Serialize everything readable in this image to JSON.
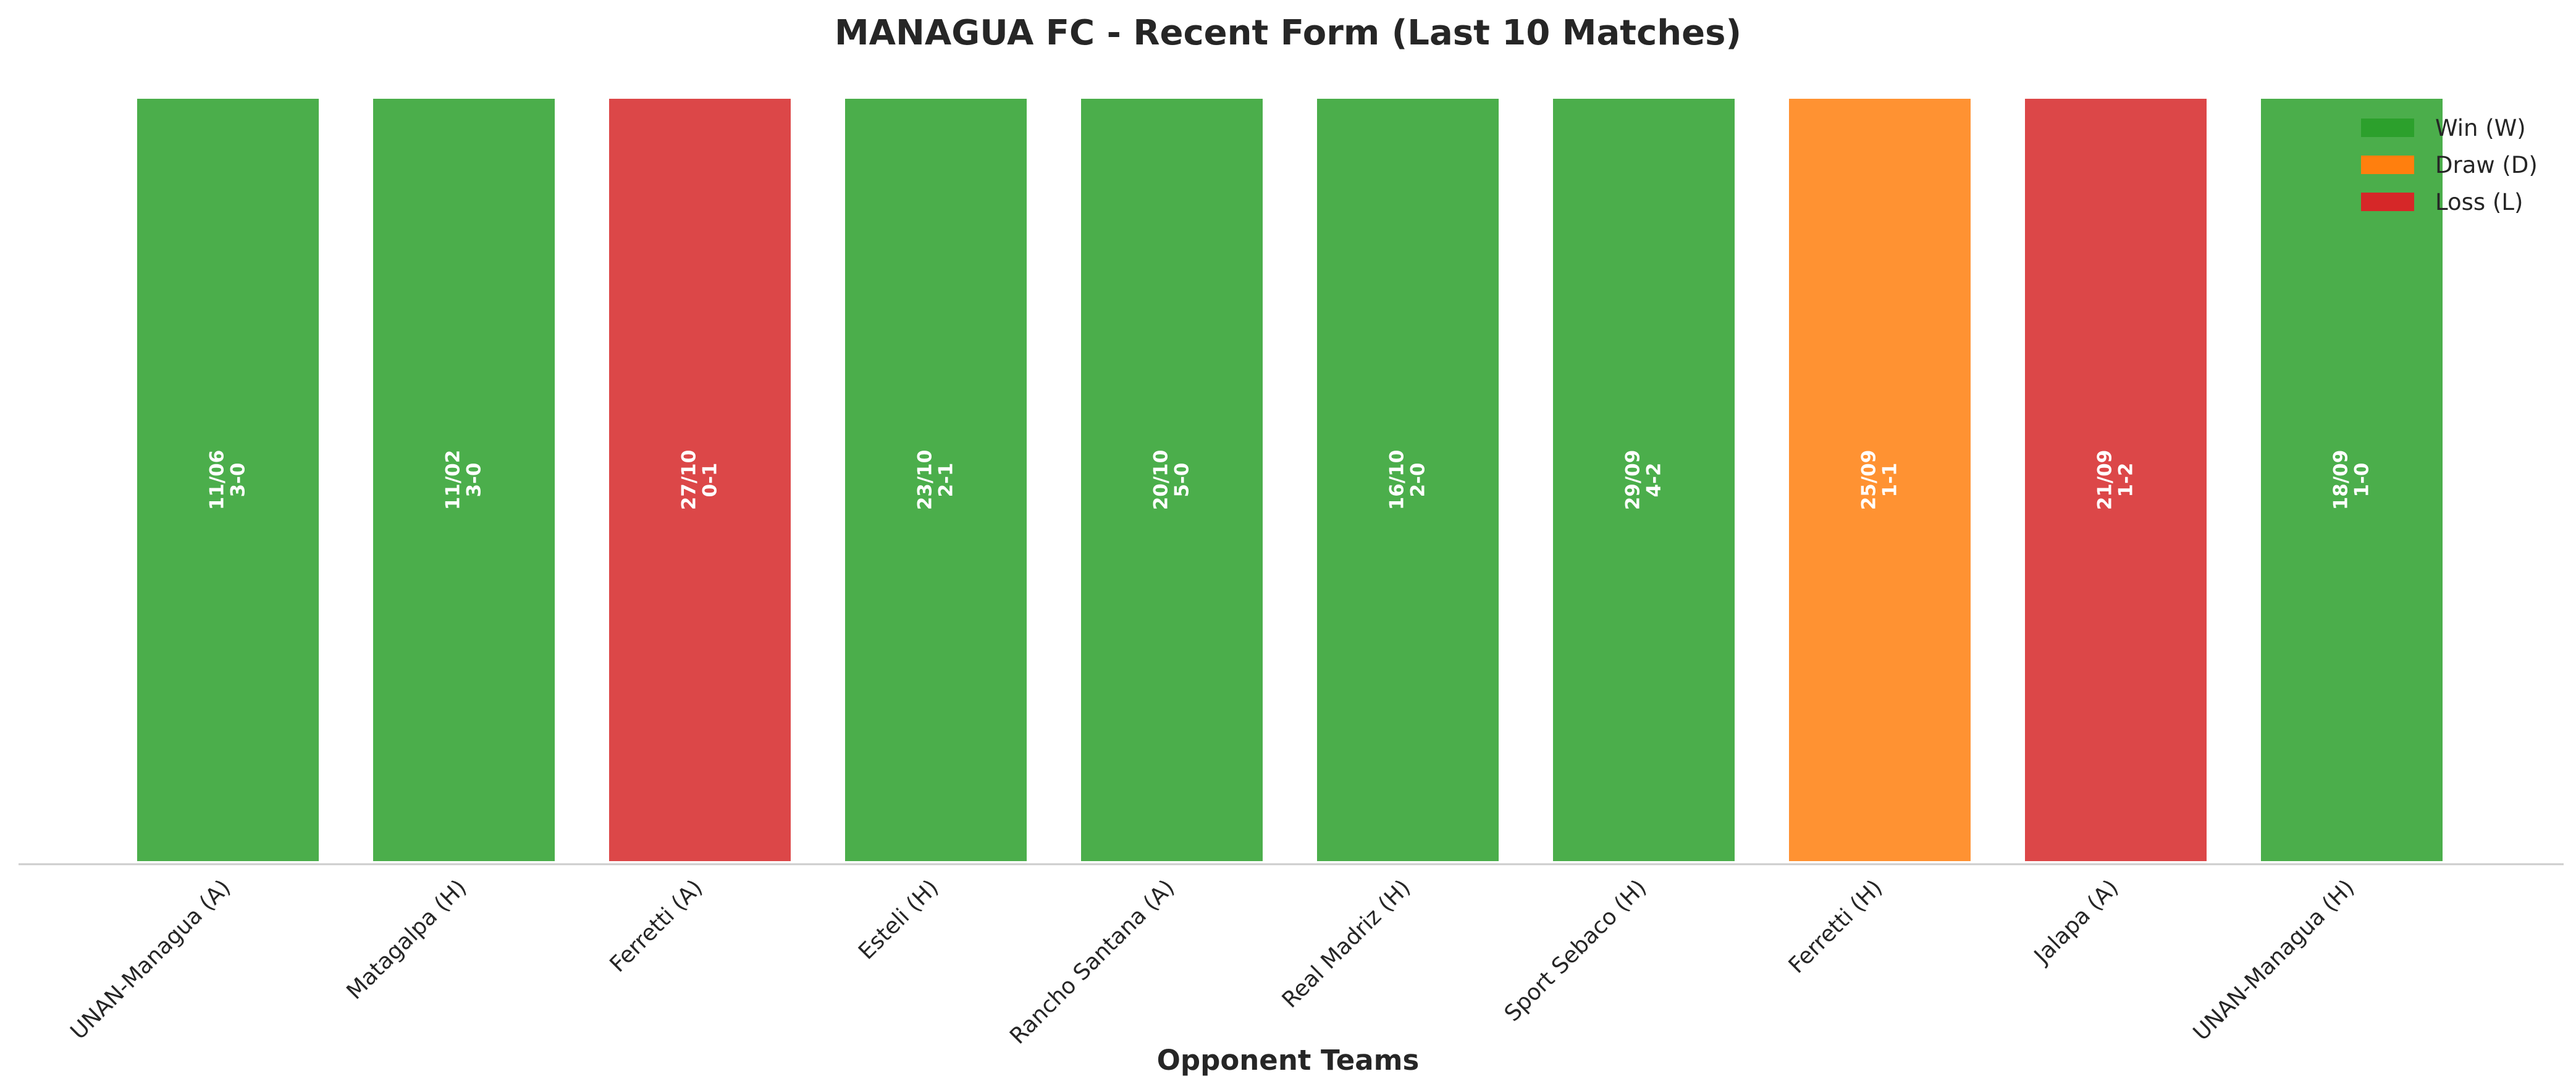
{
  "chart_data": {
    "type": "bar",
    "title": "MANAGUA FC - Recent Form (Last 10 Matches)",
    "xlabel": "Opponent Teams",
    "ylabel": "",
    "ylim": [
      0,
      1
    ],
    "grid": false,
    "legend_placement": "top-right",
    "categories": [
      "UNAN-Managua (A)",
      "Matagalpa (H)",
      "Ferretti (A)",
      "Esteli (H)",
      "Rancho Santana (A)",
      "Real Madriz (H)",
      "Sport Sebaco (H)",
      "Ferretti (H)",
      "Jalapa (A)",
      "UNAN-Managua (H)"
    ],
    "values": [
      1,
      1,
      1,
      1,
      1,
      1,
      1,
      1,
      1,
      1
    ],
    "results": [
      "W",
      "W",
      "L",
      "W",
      "W",
      "W",
      "W",
      "D",
      "L",
      "W"
    ],
    "dates": [
      "11/06",
      "11/02",
      "27/10",
      "23/10",
      "20/10",
      "16/10",
      "29/09",
      "25/09",
      "21/09",
      "18/09"
    ],
    "scores": [
      "3-0",
      "3-0",
      "0-1",
      "2-1",
      "5-0",
      "2-0",
      "4-2",
      "1-1",
      "1-2",
      "1-0"
    ],
    "legend": [
      {
        "key": "W",
        "label": "Win (W)",
        "color": "#2ca02c"
      },
      {
        "key": "D",
        "label": "Draw (D)",
        "color": "#ff7f0e"
      },
      {
        "key": "L",
        "label": "Loss (L)",
        "color": "#d62728"
      }
    ]
  }
}
